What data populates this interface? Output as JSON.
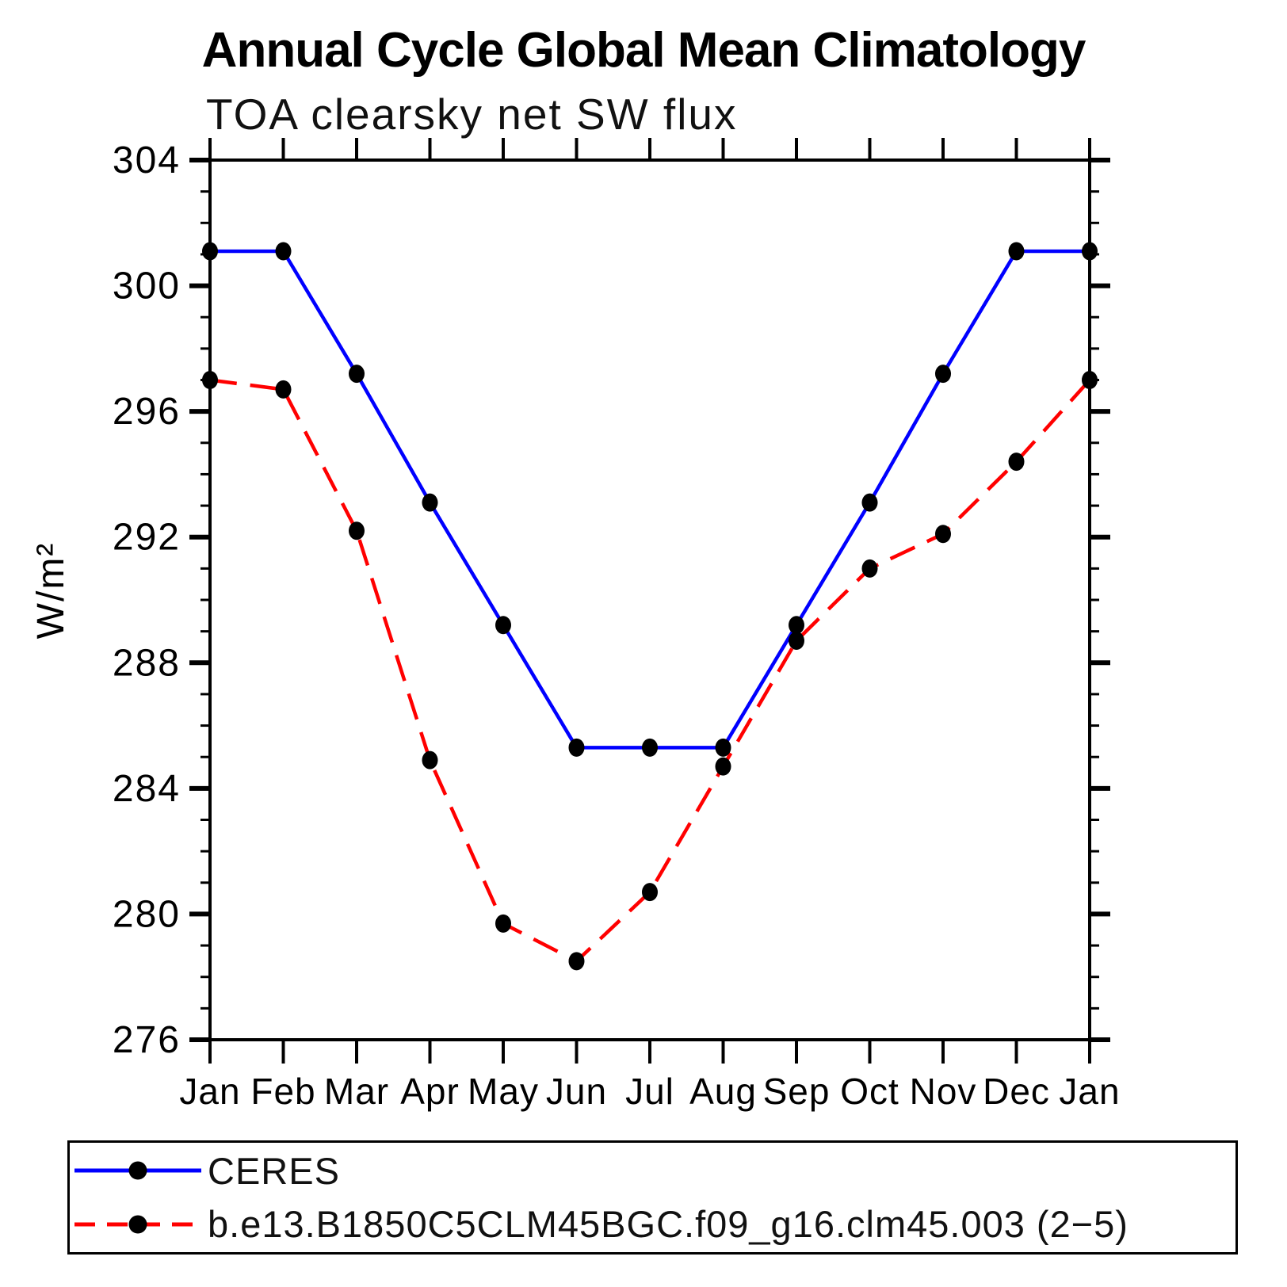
{
  "chart_data": {
    "type": "line",
    "title": "Annual Cycle Global Mean Climatology",
    "subtitle": "TOA clearsky net SW flux",
    "ylabel": "W/m²",
    "xlabel": "",
    "x_categories": [
      "Jan",
      "Feb",
      "Mar",
      "Apr",
      "May",
      "Jun",
      "Jul",
      "Aug",
      "Sep",
      "Oct",
      "Nov",
      "Dec",
      "Jan"
    ],
    "series": [
      {
        "name": "CERES",
        "color": "#0000ff",
        "line_style": "solid",
        "marker": "black-dot",
        "values": [
          301.1,
          301.1,
          297.2,
          293.1,
          289.2,
          285.3,
          285.3,
          285.3,
          289.2,
          293.1,
          297.2,
          301.1,
          301.1
        ]
      },
      {
        "name": "b.e13.B1850C5CLM45BGC.f09_g16.clm45.003 (2−5)",
        "color": "#ff0000",
        "line_style": "dashed",
        "marker": "black-dot",
        "values": [
          297.0,
          296.7,
          292.2,
          284.9,
          279.7,
          278.5,
          280.7,
          284.7,
          288.7,
          291.0,
          292.1,
          294.4,
          297.0
        ]
      }
    ],
    "ylim": [
      276,
      304
    ],
    "y_major_step": 4,
    "y_minor_step": 1,
    "y_tick_labels": [
      "276",
      "280",
      "284",
      "288",
      "292",
      "296",
      "300",
      "304"
    ],
    "grid": false,
    "legend_position": "bottom",
    "marker_color": "#000000",
    "axis_color": "#000000"
  }
}
